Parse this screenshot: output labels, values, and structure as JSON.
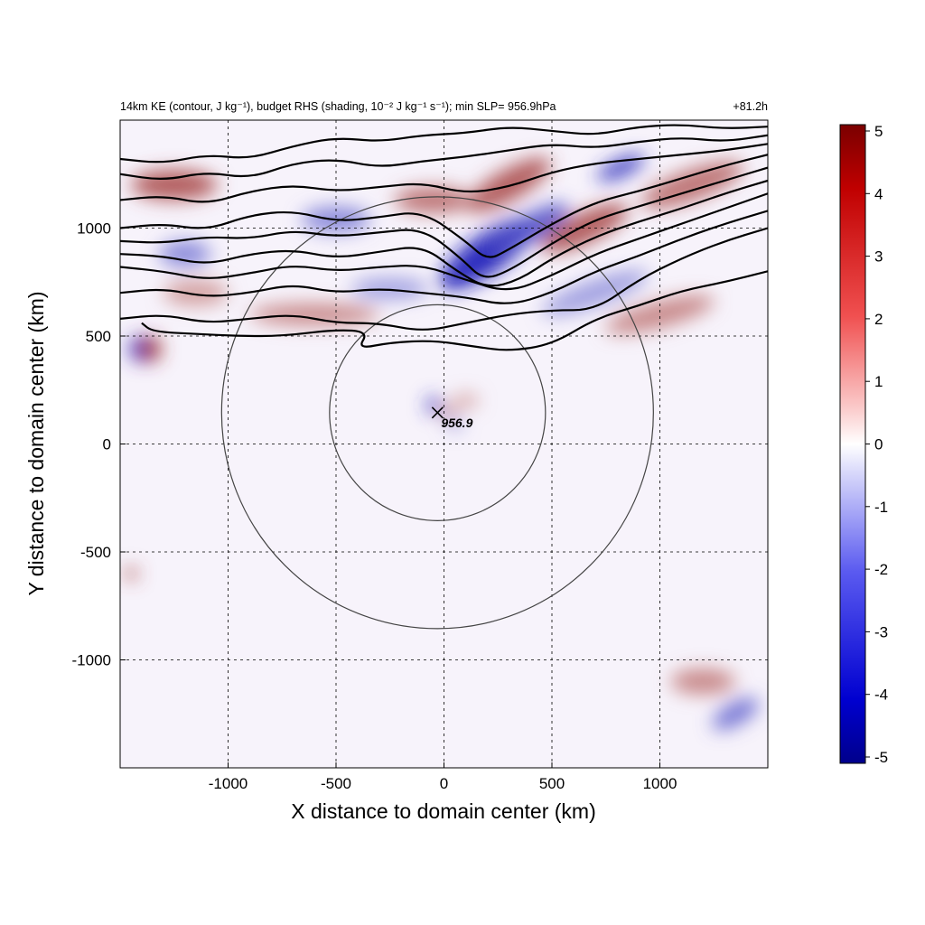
{
  "chart_data": {
    "type": "heatmap",
    "title_left": "14km KE (contour, J kg⁻¹), budget RHS (shading, 10⁻² J kg⁻¹ s⁻¹); min SLP= 956.9hPa",
    "title_right": "+81.2h",
    "xlabel": "X distance to domain center (km)",
    "ylabel": "Y distance to domain center (km)",
    "xlim": [
      -1500,
      1500
    ],
    "ylim": [
      -1500,
      1500
    ],
    "xticks": [
      -1000,
      -500,
      0,
      500,
      1000
    ],
    "yticks": [
      -1000,
      -500,
      0,
      500,
      1000
    ],
    "xtick_labels": [
      "-1000",
      "-500",
      "0",
      "500",
      "1000"
    ],
    "ytick_labels": [
      "-1000",
      "-500",
      "0",
      "500",
      "1000"
    ],
    "grid": "dashed",
    "colorbar": {
      "range": [
        -5,
        5
      ],
      "ticks": [
        5,
        4,
        3,
        2,
        1,
        0,
        -1,
        -2,
        -3,
        -4,
        -5
      ],
      "tick_labels": [
        "5",
        "4",
        "3",
        "2",
        "1",
        "0",
        "-1",
        "-2",
        "-3",
        "-4",
        "-5"
      ],
      "colormap": "blue-white-red",
      "colors": {
        "min": "#00008b",
        "mid": "#ffffff",
        "max": "#7a0000"
      }
    },
    "storm_center": {
      "x": -30,
      "y": 145,
      "label": "956.9",
      "min_slp_hPa": 956.9
    },
    "range_rings": [
      {
        "center_x": -30,
        "center_y": 145,
        "radius_km": 500
      },
      {
        "center_x": -30,
        "center_y": 145,
        "radius_km": 1000
      }
    ],
    "ke_contours": [
      [
        [
          -1500,
          1320
        ],
        [
          -1300,
          1300
        ],
        [
          -1100,
          1340
        ],
        [
          -900,
          1320
        ],
        [
          -700,
          1380
        ],
        [
          -500,
          1420
        ],
        [
          -300,
          1400
        ],
        [
          -100,
          1430
        ],
        [
          100,
          1440
        ],
        [
          300,
          1470
        ],
        [
          500,
          1450
        ],
        [
          700,
          1430
        ],
        [
          900,
          1470
        ],
        [
          1100,
          1480
        ],
        [
          1300,
          1460
        ],
        [
          1500,
          1470
        ]
      ],
      [
        [
          -1500,
          1250
        ],
        [
          -1300,
          1220
        ],
        [
          -1100,
          1260
        ],
        [
          -900,
          1230
        ],
        [
          -700,
          1300
        ],
        [
          -500,
          1320
        ],
        [
          -300,
          1280
        ],
        [
          -100,
          1310
        ],
        [
          100,
          1330
        ],
        [
          300,
          1360
        ],
        [
          500,
          1390
        ],
        [
          700,
          1370
        ],
        [
          900,
          1400
        ],
        [
          1100,
          1420
        ],
        [
          1300,
          1400
        ],
        [
          1500,
          1430
        ]
      ],
      [
        [
          -1500,
          1130
        ],
        [
          -1300,
          1150
        ],
        [
          -1100,
          1110
        ],
        [
          -900,
          1170
        ],
        [
          -700,
          1200
        ],
        [
          -500,
          1170
        ],
        [
          -300,
          1190
        ],
        [
          -100,
          1210
        ],
        [
          100,
          1160
        ],
        [
          300,
          1190
        ],
        [
          500,
          1260
        ],
        [
          700,
          1300
        ],
        [
          900,
          1320
        ],
        [
          1100,
          1340
        ],
        [
          1300,
          1360
        ],
        [
          1500,
          1390
        ]
      ],
      [
        [
          -1500,
          1000
        ],
        [
          -1300,
          1020
        ],
        [
          -1100,
          990
        ],
        [
          -900,
          1060
        ],
        [
          -700,
          1080
        ],
        [
          -500,
          1030
        ],
        [
          -300,
          1050
        ],
        [
          -100,
          1080
        ],
        [
          100,
          940
        ],
        [
          200,
          850
        ],
        [
          300,
          900
        ],
        [
          500,
          1020
        ],
        [
          700,
          1120
        ],
        [
          900,
          1170
        ],
        [
          1100,
          1230
        ],
        [
          1300,
          1290
        ],
        [
          1500,
          1340
        ]
      ],
      [
        [
          -1500,
          940
        ],
        [
          -1300,
          930
        ],
        [
          -1100,
          960
        ],
        [
          -900,
          950
        ],
        [
          -700,
          990
        ],
        [
          -500,
          960
        ],
        [
          -300,
          980
        ],
        [
          -100,
          1000
        ],
        [
          80,
          860
        ],
        [
          180,
          760
        ],
        [
          300,
          800
        ],
        [
          500,
          930
        ],
        [
          700,
          1040
        ],
        [
          900,
          1100
        ],
        [
          1100,
          1160
        ],
        [
          1300,
          1220
        ],
        [
          1500,
          1280
        ]
      ],
      [
        [
          -1500,
          880
        ],
        [
          -1300,
          870
        ],
        [
          -1100,
          830
        ],
        [
          -900,
          880
        ],
        [
          -700,
          900
        ],
        [
          -500,
          860
        ],
        [
          -300,
          890
        ],
        [
          -100,
          920
        ],
        [
          60,
          800
        ],
        [
          200,
          720
        ],
        [
          350,
          760
        ],
        [
          500,
          860
        ],
        [
          700,
          960
        ],
        [
          900,
          1030
        ],
        [
          1100,
          1090
        ],
        [
          1300,
          1160
        ],
        [
          1500,
          1220
        ]
      ],
      [
        [
          -1500,
          820
        ],
        [
          -1300,
          800
        ],
        [
          -1100,
          760
        ],
        [
          -900,
          790
        ],
        [
          -700,
          830
        ],
        [
          -500,
          800
        ],
        [
          -300,
          820
        ],
        [
          -100,
          830
        ],
        [
          100,
          760
        ],
        [
          300,
          700
        ],
        [
          500,
          780
        ],
        [
          700,
          880
        ],
        [
          900,
          950
        ],
        [
          1100,
          1020
        ],
        [
          1300,
          1090
        ],
        [
          1500,
          1160
        ]
      ],
      [
        [
          -1500,
          700
        ],
        [
          -1300,
          720
        ],
        [
          -1100,
          680
        ],
        [
          -900,
          700
        ],
        [
          -700,
          740
        ],
        [
          -500,
          700
        ],
        [
          -300,
          720
        ],
        [
          -100,
          700
        ],
        [
          100,
          680
        ],
        [
          300,
          640
        ],
        [
          500,
          700
        ],
        [
          700,
          800
        ],
        [
          900,
          870
        ],
        [
          1100,
          950
        ],
        [
          1300,
          1020
        ],
        [
          1500,
          1080
        ]
      ],
      [
        [
          -1500,
          580
        ],
        [
          -1300,
          600
        ],
        [
          -1100,
          560
        ],
        [
          -900,
          580
        ],
        [
          -700,
          600
        ],
        [
          -500,
          560
        ],
        [
          -300,
          560
        ],
        [
          -100,
          520
        ],
        [
          100,
          560
        ],
        [
          300,
          600
        ],
        [
          500,
          620
        ],
        [
          700,
          620
        ],
        [
          900,
          760
        ],
        [
          1100,
          860
        ],
        [
          1300,
          940
        ],
        [
          1500,
          1000
        ]
      ],
      [
        [
          -1400,
          560
        ],
        [
          -1350,
          520
        ],
        [
          -1150,
          510
        ],
        [
          -950,
          500
        ],
        [
          -750,
          500
        ],
        [
          -500,
          530
        ],
        [
          -350,
          520
        ],
        [
          -400,
          440
        ],
        [
          -250,
          470
        ],
        [
          -50,
          480
        ],
        [
          150,
          450
        ],
        [
          300,
          430
        ],
        [
          500,
          460
        ],
        [
          700,
          580
        ],
        [
          900,
          640
        ],
        [
          1100,
          710
        ],
        [
          1300,
          750
        ],
        [
          1500,
          800
        ]
      ]
    ],
    "shading_features": [
      {
        "x": 200,
        "y": 880,
        "rx": 260,
        "ry": 90,
        "angle": -35,
        "value": -4.5
      },
      {
        "x": 400,
        "y": 1000,
        "rx": 200,
        "ry": 60,
        "angle": -30,
        "value": -3.5
      },
      {
        "x": 820,
        "y": 1280,
        "rx": 120,
        "ry": 40,
        "angle": -25,
        "value": -4
      },
      {
        "x": -500,
        "y": 1040,
        "rx": 160,
        "ry": 60,
        "angle": 0,
        "value": -2.5
      },
      {
        "x": -1200,
        "y": 880,
        "rx": 120,
        "ry": 60,
        "angle": 0,
        "value": -2.5
      },
      {
        "x": -1400,
        "y": 440,
        "rx": 60,
        "ry": 60,
        "angle": 0,
        "value": -4
      },
      {
        "x": 700,
        "y": 700,
        "rx": 260,
        "ry": 60,
        "angle": -20,
        "value": -2
      },
      {
        "x": -250,
        "y": 720,
        "rx": 180,
        "ry": 50,
        "angle": 0,
        "value": -2
      },
      {
        "x": 1350,
        "y": -1250,
        "rx": 120,
        "ry": 50,
        "angle": -30,
        "value": -3
      },
      {
        "x": -1360,
        "y": 440,
        "rx": 50,
        "ry": 60,
        "angle": 0,
        "value": 4
      },
      {
        "x": -1250,
        "y": 1200,
        "rx": 200,
        "ry": 70,
        "angle": 0,
        "value": 3.5
      },
      {
        "x": 300,
        "y": 1200,
        "rx": 220,
        "ry": 70,
        "angle": -30,
        "value": 3.5
      },
      {
        "x": 650,
        "y": 1000,
        "rx": 220,
        "ry": 70,
        "angle": -25,
        "value": 3.5
      },
      {
        "x": 1150,
        "y": 1200,
        "rx": 250,
        "ry": 70,
        "angle": -20,
        "value": 3
      },
      {
        "x": -50,
        "y": 1130,
        "rx": 180,
        "ry": 60,
        "angle": 0,
        "value": 3
      },
      {
        "x": -600,
        "y": 600,
        "rx": 300,
        "ry": 50,
        "angle": 0,
        "value": 2.5
      },
      {
        "x": 1000,
        "y": 600,
        "rx": 260,
        "ry": 60,
        "angle": -15,
        "value": 2.5
      },
      {
        "x": -1150,
        "y": 700,
        "rx": 150,
        "ry": 60,
        "angle": 0,
        "value": 2
      },
      {
        "x": -1450,
        "y": -600,
        "rx": 30,
        "ry": 30,
        "angle": 0,
        "value": 3.5
      },
      {
        "x": 1200,
        "y": -1100,
        "rx": 150,
        "ry": 60,
        "angle": 0,
        "value": 2.5
      },
      {
        "x": -50,
        "y": 180,
        "rx": 30,
        "ry": 40,
        "angle": 0,
        "value": -4
      },
      {
        "x": 20,
        "y": 150,
        "rx": 35,
        "ry": 25,
        "angle": 0,
        "value": 3
      },
      {
        "x": 100,
        "y": 200,
        "rx": 60,
        "ry": 30,
        "angle": 0,
        "value": 2
      },
      {
        "x": 50,
        "y": 90,
        "rx": 40,
        "ry": 25,
        "angle": 0,
        "value": -2
      }
    ]
  }
}
